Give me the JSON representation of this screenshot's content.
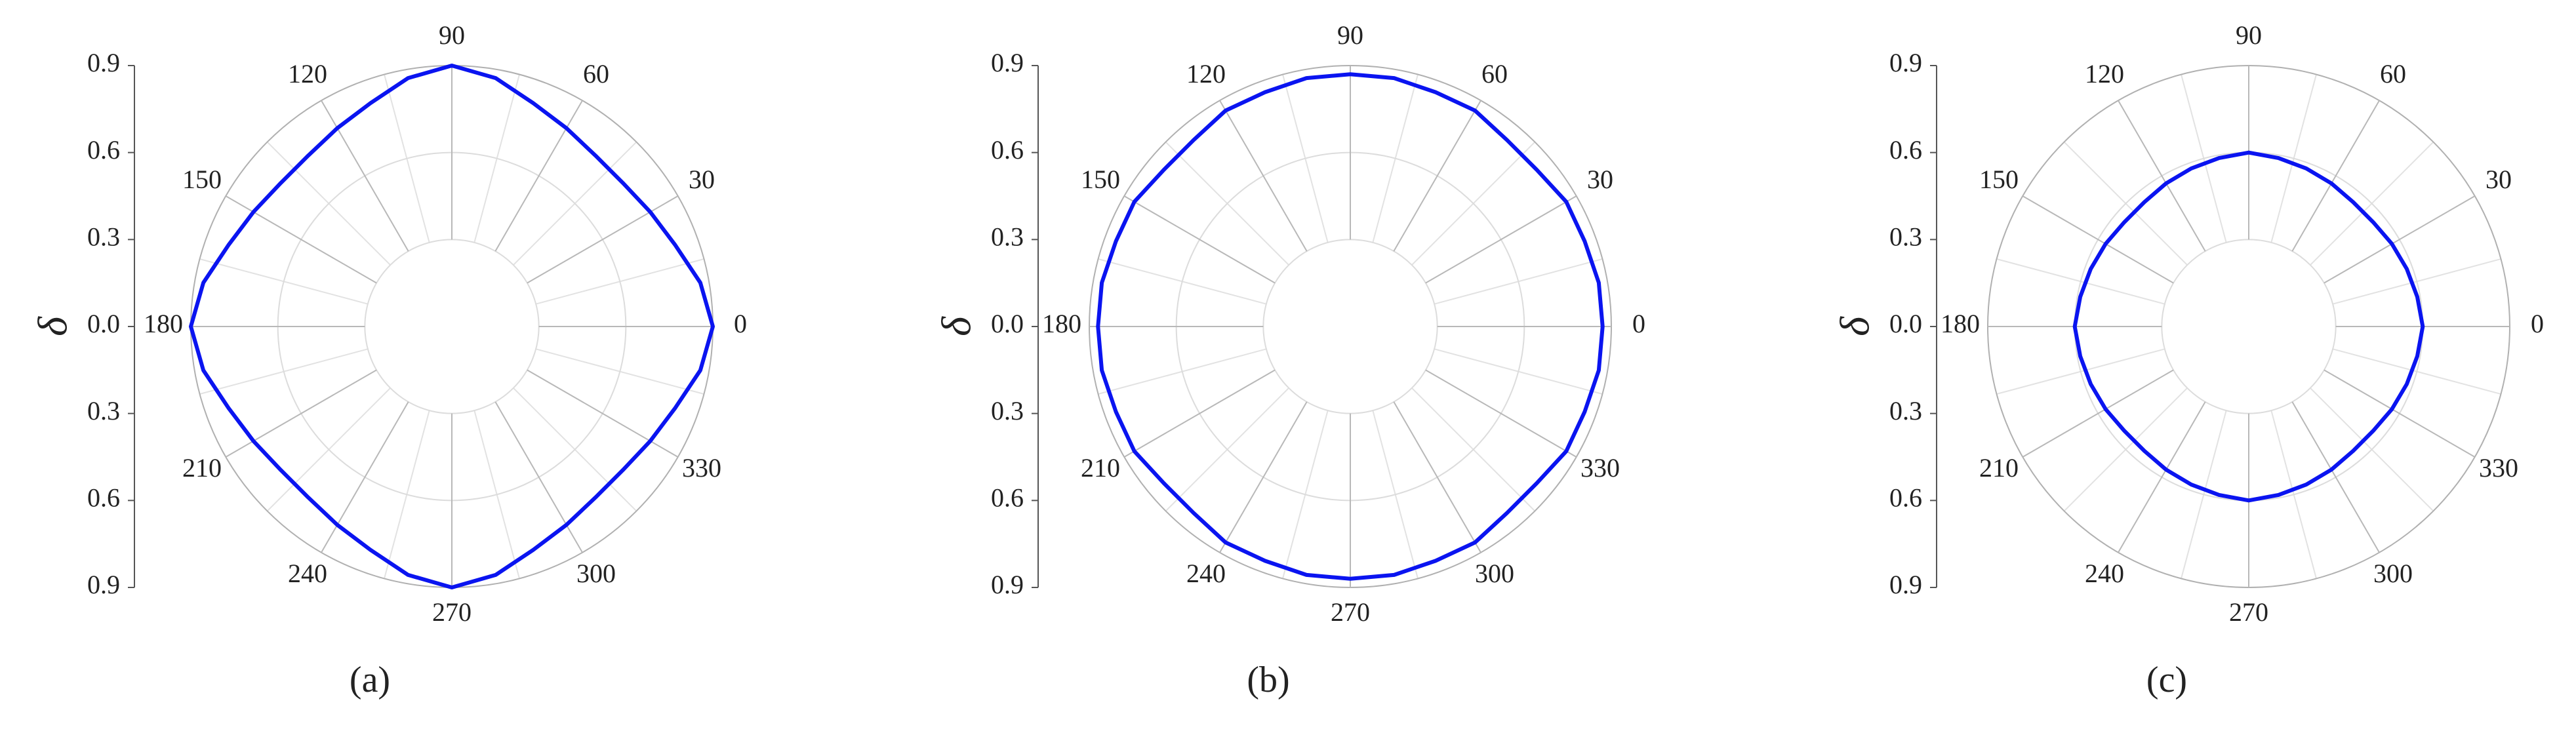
{
  "chart_data": [
    {
      "type": "polar",
      "ylabel": "δ",
      "caption": "(a)",
      "color": "#0a14f0",
      "theta": [
        0,
        10,
        20,
        30,
        40,
        50,
        60,
        70,
        80,
        90,
        100,
        110,
        120,
        130,
        140,
        150,
        160,
        170,
        180,
        190,
        200,
        210,
        220,
        230,
        240,
        250,
        260,
        270,
        280,
        290,
        300,
        310,
        320,
        330,
        340,
        350
      ],
      "values": [
        0.9,
        0.87,
        0.82,
        0.79,
        0.77,
        0.77,
        0.79,
        0.82,
        0.87,
        0.9,
        0.87,
        0.82,
        0.79,
        0.77,
        0.77,
        0.79,
        0.82,
        0.87,
        0.9,
        0.87,
        0.82,
        0.79,
        0.77,
        0.77,
        0.79,
        0.82,
        0.87,
        0.9,
        0.87,
        0.82,
        0.79,
        0.77,
        0.77,
        0.79,
        0.82,
        0.87
      ],
      "rlim": [
        0,
        0.9
      ],
      "rticks": [
        0.3,
        0.6,
        0.9
      ],
      "thetaticks": [
        0,
        30,
        60,
        90,
        120,
        150,
        180,
        210,
        240,
        270,
        300,
        330
      ],
      "ylim": [
        -0.9,
        0.9
      ],
      "yticks": [
        0.9,
        0.6,
        0.3,
        {
          "value": 0,
          "label": "0.0"
        },
        {
          "value": -0.3,
          "label": "0.3"
        },
        {
          "value": -0.6,
          "label": "0.6"
        },
        {
          "value": -0.9,
          "label": "0.9"
        }
      ]
    },
    {
      "type": "polar",
      "ylabel": "δ",
      "caption": "(b)",
      "color": "#0a14f0",
      "theta": [
        0,
        10,
        20,
        30,
        40,
        50,
        60,
        70,
        80,
        90,
        100,
        110,
        120,
        130,
        140,
        150,
        160,
        170,
        180,
        190,
        200,
        210,
        220,
        230,
        240,
        250,
        260,
        270,
        280,
        290,
        300,
        310,
        320,
        330,
        340,
        350
      ],
      "values": [
        0.87,
        0.87,
        0.86,
        0.86,
        0.84,
        0.84,
        0.86,
        0.86,
        0.87,
        0.87,
        0.87,
        0.86,
        0.86,
        0.84,
        0.84,
        0.86,
        0.86,
        0.87,
        0.87,
        0.87,
        0.86,
        0.86,
        0.84,
        0.84,
        0.86,
        0.86,
        0.87,
        0.87,
        0.87,
        0.86,
        0.86,
        0.84,
        0.84,
        0.86,
        0.86,
        0.87
      ],
      "rlim": [
        0,
        0.9
      ],
      "rticks": [
        0.3,
        0.6,
        0.9
      ],
      "thetaticks": [
        0,
        30,
        60,
        90,
        120,
        150,
        180,
        210,
        240,
        270,
        300,
        330
      ],
      "ylim": [
        -0.9,
        0.9
      ],
      "yticks": [
        0.9,
        0.6,
        0.3,
        {
          "value": 0,
          "label": "0.0"
        },
        {
          "value": -0.3,
          "label": "0.3"
        },
        {
          "value": -0.6,
          "label": "0.6"
        },
        {
          "value": -0.9,
          "label": "0.9"
        }
      ]
    },
    {
      "type": "polar",
      "ylabel": "δ",
      "caption": "(c)",
      "color": "#0a14f0",
      "theta": [
        0,
        10,
        20,
        30,
        40,
        50,
        60,
        70,
        80,
        90,
        100,
        110,
        120,
        130,
        140,
        150,
        160,
        170,
        180,
        190,
        200,
        210,
        220,
        230,
        240,
        250,
        260,
        270,
        280,
        290,
        300,
        310,
        320,
        330,
        340,
        350
      ],
      "values": [
        0.6,
        0.59,
        0.58,
        0.57,
        0.56,
        0.56,
        0.57,
        0.58,
        0.59,
        0.6,
        0.59,
        0.58,
        0.57,
        0.56,
        0.56,
        0.57,
        0.58,
        0.59,
        0.6,
        0.59,
        0.58,
        0.57,
        0.56,
        0.56,
        0.57,
        0.58,
        0.59,
        0.6,
        0.59,
        0.58,
        0.57,
        0.56,
        0.56,
        0.57,
        0.58,
        0.59
      ],
      "rlim": [
        0,
        0.9
      ],
      "rticks": [
        0.3,
        0.6,
        0.9
      ],
      "thetaticks": [
        0,
        30,
        60,
        90,
        120,
        150,
        180,
        210,
        240,
        270,
        300,
        330
      ],
      "ylim": [
        -0.9,
        0.9
      ],
      "yticks": [
        0.9,
        0.6,
        0.3,
        {
          "value": 0,
          "label": "0.0"
        },
        {
          "value": -0.3,
          "label": "0.3"
        },
        {
          "value": -0.6,
          "label": "0.6"
        },
        {
          "value": -0.9,
          "label": "0.9"
        }
      ]
    }
  ]
}
